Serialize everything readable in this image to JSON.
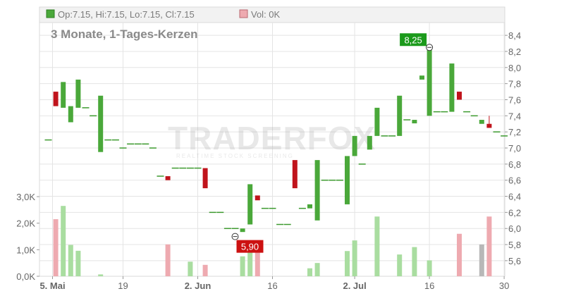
{
  "header": {
    "ohlc_label": "Op:7.15, Hi:7.15, Lo:7.15, Cl:7.15",
    "vol_label": "Vol: 0K"
  },
  "subtitle": "3 Monate, 1-Tages-Kerzen",
  "watermark": {
    "brand": "TRADERFOX",
    "tagline": "REALTIME STOCK SCREENING"
  },
  "colors": {
    "up": "#4aa83a",
    "down": "#c0141c",
    "vol_up": "#a9dda0",
    "vol_down": "#eeaab0",
    "vol_neutral": "#b8b8b8",
    "max_badge": "#1b9a1b",
    "min_badge": "#cc1111",
    "grid": "#e4e4e4",
    "axis_text": "#666666"
  },
  "chart_data": {
    "type": "candlestick",
    "x_tick_labels": [
      "5. Mai",
      "19",
      "2. Jun",
      "16",
      "2. Jul",
      "16",
      "30"
    ],
    "price_axis": {
      "ticks": [
        "5,6",
        "5,8",
        "6,0",
        "6,2",
        "6,4",
        "6,6",
        "6,8",
        "7,0",
        "7,2",
        "7,4",
        "7,6",
        "7,8",
        "8,0",
        "8,2",
        "8,4"
      ],
      "range": [
        5.45,
        8.55
      ]
    },
    "volume_axis": {
      "ticks": [
        "0,0K",
        "1,0K",
        "2,0K",
        "3,0K"
      ],
      "range": [
        0,
        3000
      ]
    },
    "max_label": {
      "text": "8,25",
      "value": 8.25
    },
    "min_label": {
      "text": "5,90",
      "value": 5.9
    },
    "candles": [
      {
        "o": 7.1,
        "h": 7.1,
        "l": 7.1,
        "c": 7.1,
        "v": 0,
        "dir": "flat"
      },
      {
        "o": 7.7,
        "h": 7.7,
        "l": 7.52,
        "c": 7.52,
        "v": 2150,
        "dir": "down"
      },
      {
        "o": 7.5,
        "h": 7.82,
        "l": 7.5,
        "c": 7.82,
        "v": 2650,
        "dir": "up"
      },
      {
        "o": 7.32,
        "h": 7.52,
        "l": 7.32,
        "c": 7.52,
        "v": 1180,
        "dir": "up"
      },
      {
        "o": 7.5,
        "h": 7.85,
        "l": 7.5,
        "c": 7.85,
        "v": 960,
        "dir": "up"
      },
      {
        "o": 7.5,
        "h": 7.5,
        "l": 7.5,
        "c": 7.5,
        "v": 0,
        "dir": "flat"
      },
      {
        "o": 7.4,
        "h": 7.4,
        "l": 7.4,
        "c": 7.4,
        "v": 0,
        "dir": "flat"
      },
      {
        "o": 6.95,
        "h": 7.65,
        "l": 6.95,
        "c": 7.65,
        "v": 70,
        "dir": "up"
      },
      {
        "o": 7.1,
        "h": 7.1,
        "l": 7.1,
        "c": 7.1,
        "v": 0,
        "dir": "flat"
      },
      {
        "o": 7.1,
        "h": 7.1,
        "l": 7.1,
        "c": 7.1,
        "v": 0,
        "dir": "flat"
      },
      {
        "o": 7.0,
        "h": 7.0,
        "l": 7.0,
        "c": 7.0,
        "v": 0,
        "dir": "flat"
      },
      {
        "o": 7.05,
        "h": 7.05,
        "l": 7.05,
        "c": 7.05,
        "v": 0,
        "dir": "flat"
      },
      {
        "o": 7.05,
        "h": 7.05,
        "l": 7.05,
        "c": 7.05,
        "v": 0,
        "dir": "flat"
      },
      {
        "o": 7.05,
        "h": 7.05,
        "l": 7.05,
        "c": 7.05,
        "v": 0,
        "dir": "flat"
      },
      {
        "o": 7.0,
        "h": 7.0,
        "l": 7.0,
        "c": 7.0,
        "v": 0,
        "dir": "flat"
      },
      {
        "o": 6.65,
        "h": 6.65,
        "l": 6.65,
        "c": 6.65,
        "v": 0,
        "dir": "flat"
      },
      {
        "o": 6.65,
        "h": 6.65,
        "l": 6.6,
        "c": 6.6,
        "v": 1200,
        "dir": "down"
      },
      {
        "o": 6.75,
        "h": 6.75,
        "l": 6.75,
        "c": 6.75,
        "v": 0,
        "dir": "flat"
      },
      {
        "o": 6.75,
        "h": 6.75,
        "l": 6.75,
        "c": 6.75,
        "v": 0,
        "dir": "flat"
      },
      {
        "o": 6.75,
        "h": 6.75,
        "l": 6.75,
        "c": 6.75,
        "v": 550,
        "dir": "flat"
      },
      {
        "o": 6.75,
        "h": 6.75,
        "l": 6.75,
        "c": 6.75,
        "v": 0,
        "dir": "flat"
      },
      {
        "o": 6.75,
        "h": 6.75,
        "l": 6.5,
        "c": 6.5,
        "v": 430,
        "dir": "down"
      },
      {
        "o": 6.2,
        "h": 6.2,
        "l": 6.2,
        "c": 6.2,
        "v": 0,
        "dir": "flat"
      },
      {
        "o": 6.2,
        "h": 6.2,
        "l": 6.2,
        "c": 6.2,
        "v": 0,
        "dir": "flat"
      },
      {
        "o": 6.0,
        "h": 6.0,
        "l": 6.0,
        "c": 6.0,
        "v": 0,
        "dir": "flat"
      },
      {
        "o": 6.0,
        "h": 6.0,
        "l": 5.9,
        "c": 6.0,
        "v": 0,
        "dir": "flat"
      },
      {
        "o": 6.0,
        "h": 6.0,
        "l": 6.0,
        "c": 6.0,
        "v": 750,
        "dir": "up"
      },
      {
        "o": 6.05,
        "h": 6.55,
        "l": 6.05,
        "c": 6.55,
        "v": 1000,
        "dir": "up"
      },
      {
        "o": 6.35,
        "h": 6.41,
        "l": 6.35,
        "c": 6.41,
        "v": 1000,
        "dir": "down"
      },
      {
        "o": 6.25,
        "h": 6.25,
        "l": 6.25,
        "c": 6.25,
        "v": 0,
        "dir": "flat"
      },
      {
        "o": 6.25,
        "h": 6.25,
        "l": 6.25,
        "c": 6.25,
        "v": 0,
        "dir": "flat"
      },
      {
        "o": 6.05,
        "h": 6.05,
        "l": 6.05,
        "c": 6.05,
        "v": 0,
        "dir": "flat"
      },
      {
        "o": 6.05,
        "h": 6.05,
        "l": 6.05,
        "c": 6.05,
        "v": 0,
        "dir": "flat"
      },
      {
        "o": 6.85,
        "h": 6.85,
        "l": 6.5,
        "c": 6.5,
        "v": 0,
        "dir": "down"
      },
      {
        "o": 6.25,
        "h": 6.25,
        "l": 6.25,
        "c": 6.25,
        "v": 0,
        "dir": "flat"
      },
      {
        "o": 6.25,
        "h": 6.3,
        "l": 6.25,
        "c": 6.3,
        "v": 300,
        "dir": "up"
      },
      {
        "o": 6.1,
        "h": 6.85,
        "l": 6.1,
        "c": 6.85,
        "v": 500,
        "dir": "up"
      },
      {
        "o": 6.6,
        "h": 6.6,
        "l": 6.6,
        "c": 6.6,
        "v": 0,
        "dir": "flat"
      },
      {
        "o": 6.6,
        "h": 6.6,
        "l": 6.6,
        "c": 6.6,
        "v": 0,
        "dir": "flat"
      },
      {
        "o": 6.6,
        "h": 6.6,
        "l": 6.6,
        "c": 6.6,
        "v": 0,
        "dir": "flat"
      },
      {
        "o": 6.3,
        "h": 6.9,
        "l": 6.3,
        "c": 6.9,
        "v": 950,
        "dir": "up"
      },
      {
        "o": 6.9,
        "h": 7.15,
        "l": 6.9,
        "c": 7.15,
        "v": 1350,
        "dir": "up"
      },
      {
        "o": 6.8,
        "h": 6.8,
        "l": 6.8,
        "c": 6.8,
        "v": 0,
        "dir": "flat"
      },
      {
        "o": 6.98,
        "h": 7.15,
        "l": 6.98,
        "c": 7.15,
        "v": 0,
        "dir": "up"
      },
      {
        "o": 7.15,
        "h": 7.5,
        "l": 7.15,
        "c": 7.5,
        "v": 2250,
        "dir": "up"
      },
      {
        "o": 7.15,
        "h": 7.15,
        "l": 7.15,
        "c": 7.15,
        "v": 0,
        "dir": "flat"
      },
      {
        "o": 7.15,
        "h": 7.15,
        "l": 7.15,
        "c": 7.15,
        "v": 0,
        "dir": "flat"
      },
      {
        "o": 7.15,
        "h": 7.65,
        "l": 7.15,
        "c": 7.65,
        "v": 820,
        "dir": "up"
      },
      {
        "o": 7.35,
        "h": 7.35,
        "l": 7.35,
        "c": 7.35,
        "v": 0,
        "dir": "flat"
      },
      {
        "o": 7.35,
        "h": 7.35,
        "l": 7.35,
        "c": 7.35,
        "v": 1100,
        "dir": "up"
      },
      {
        "o": 7.85,
        "h": 7.9,
        "l": 7.85,
        "c": 7.9,
        "v": 0,
        "dir": "up"
      },
      {
        "o": 7.4,
        "h": 8.25,
        "l": 7.4,
        "c": 8.25,
        "v": 600,
        "dir": "up"
      },
      {
        "o": 7.45,
        "h": 7.45,
        "l": 7.45,
        "c": 7.45,
        "v": 0,
        "dir": "flat"
      },
      {
        "o": 7.45,
        "h": 7.45,
        "l": 7.45,
        "c": 7.45,
        "v": 0,
        "dir": "flat"
      },
      {
        "o": 7.45,
        "h": 8.05,
        "l": 7.45,
        "c": 8.05,
        "v": 0,
        "dir": "up"
      },
      {
        "o": 7.7,
        "h": 7.7,
        "l": 7.6,
        "c": 7.6,
        "v": 1600,
        "dir": "down"
      },
      {
        "o": 7.45,
        "h": 7.45,
        "l": 7.45,
        "c": 7.45,
        "v": 0,
        "dir": "flat"
      },
      {
        "o": 7.4,
        "h": 7.4,
        "l": 7.4,
        "c": 7.4,
        "v": 0,
        "dir": "flat"
      },
      {
        "o": 7.3,
        "h": 7.35,
        "l": 7.3,
        "c": 7.35,
        "v": 1200,
        "dir": "neutral"
      },
      {
        "o": 7.3,
        "h": 7.4,
        "l": 7.25,
        "c": 7.25,
        "v": 2250,
        "dir": "down"
      },
      {
        "o": 7.2,
        "h": 7.2,
        "l": 7.2,
        "c": 7.2,
        "v": 0,
        "dir": "flat"
      },
      {
        "o": 7.15,
        "h": 7.15,
        "l": 7.15,
        "c": 7.15,
        "v": 0,
        "dir": "flat"
      }
    ]
  }
}
